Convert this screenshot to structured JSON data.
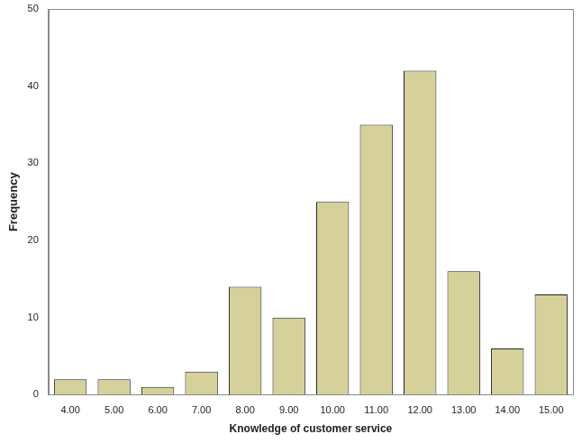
{
  "chart_data": {
    "type": "bar",
    "x_label": "Knowledge of customer service",
    "y_label": "Frequency",
    "categories": [
      "4.00",
      "5.00",
      "6.00",
      "7.00",
      "8.00",
      "9.00",
      "10.00",
      "11.00",
      "12.00",
      "13.00",
      "14.00",
      "15.00"
    ],
    "values": [
      2,
      2,
      1,
      3,
      14,
      10,
      25,
      35,
      42,
      16,
      6,
      13
    ],
    "color": "#d6d19b",
    "ylim": [
      0,
      50
    ],
    "yticks": [
      0,
      10,
      20,
      30,
      40,
      50
    ],
    "grid": false
  }
}
